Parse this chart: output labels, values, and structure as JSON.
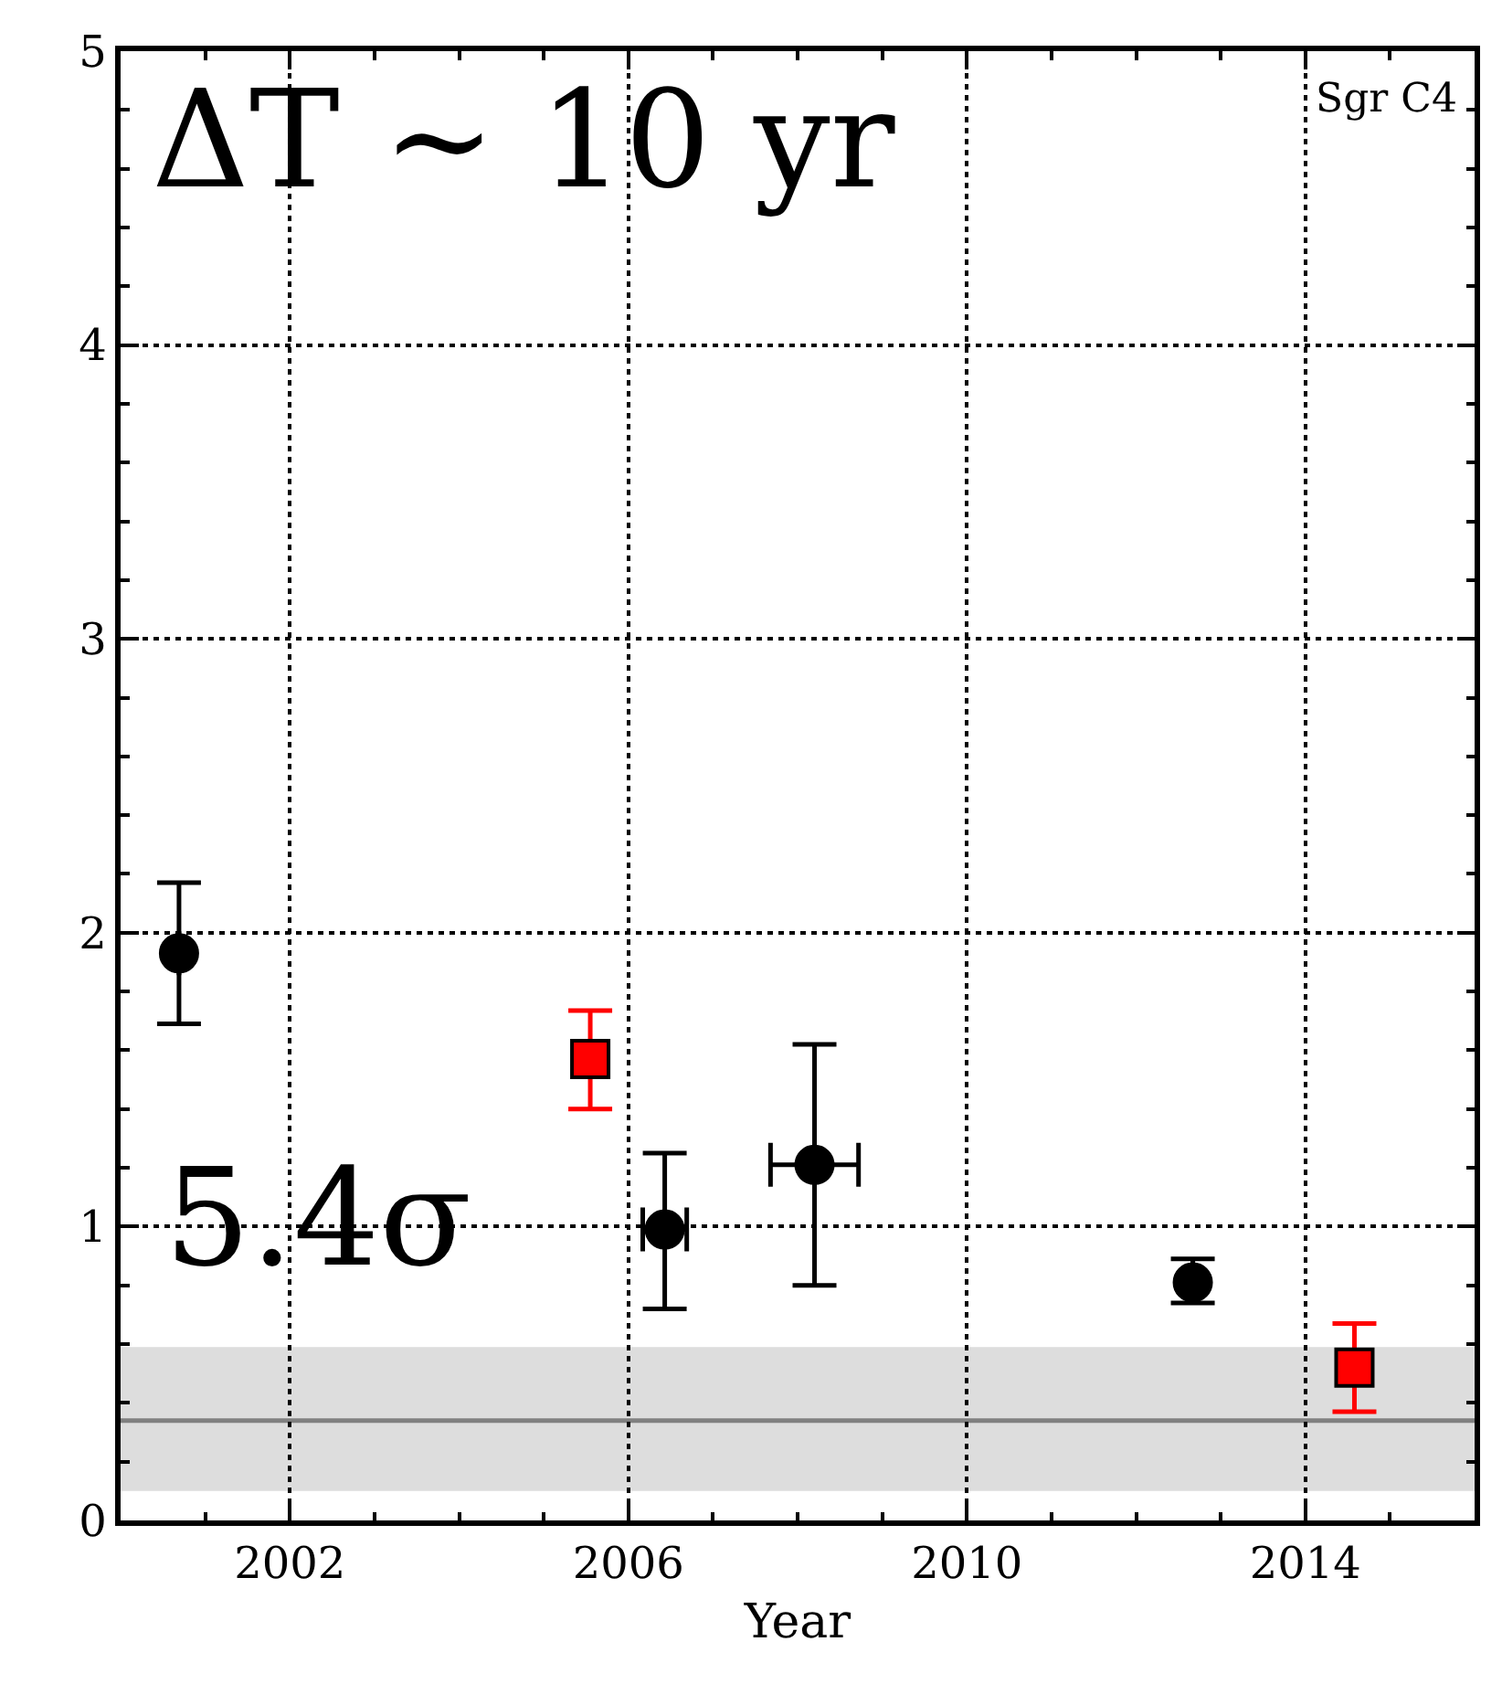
{
  "chart_data": {
    "type": "scatter",
    "xlabel": "Year",
    "xlim": [
      2000,
      2016
    ],
    "xticks": [
      2002,
      2006,
      2010,
      2014
    ],
    "ylim": [
      0,
      5
    ],
    "yticks": [
      0,
      1,
      2,
      3,
      4,
      5
    ],
    "grid": true,
    "series": [
      {
        "color": "#000000",
        "marker": "circle",
        "x": [
          2000.69,
          2006.43,
          2008.2,
          2012.67
        ],
        "values": [
          1.93,
          0.99,
          1.21,
          0.81
        ],
        "errors": [
          [
            1.69,
            2.17
          ],
          [
            0.72,
            1.25
          ],
          [
            0.8,
            1.62
          ],
          [
            0.74,
            0.89
          ]
        ],
        "xerrors": [
          null,
          0.26,
          0.52,
          null
        ]
      },
      {
        "color": "#ff0000",
        "marker": "square",
        "x": [
          2005.55,
          2014.58
        ],
        "values": [
          1.57,
          0.52
        ],
        "errors": [
          [
            1.4,
            1.735
          ],
          [
            0.37,
            0.67
          ]
        ]
      }
    ],
    "bands": [
      {
        "axis": "y",
        "from": 0.1,
        "to": 0.59,
        "color": "#dddddd"
      }
    ],
    "ref_lines": [
      {
        "axis": "y",
        "value": 0.34,
        "color": "#808080"
      }
    ],
    "annotations": [
      "ΔT ∼ 10 yr",
      "Sgr C4",
      "5.4σ"
    ]
  }
}
